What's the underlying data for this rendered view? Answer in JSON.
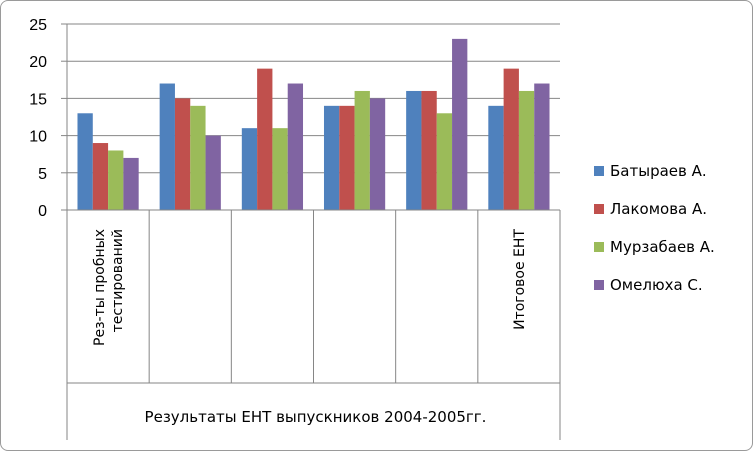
{
  "chart_data": {
    "type": "bar",
    "categories": [
      "Рез-ты пробных тестирований",
      "",
      "",
      "",
      "",
      "Итоговое ЕНТ"
    ],
    "category_label_lines": [
      [
        "Рез-ты пробных",
        "тестирований"
      ],
      [],
      [],
      [],
      [],
      [
        "Итоговое ЕНТ"
      ]
    ],
    "group_label": "Результаты ЕНТ выпускников 2004-2005гг.",
    "series": [
      {
        "name": "Батыраев А.",
        "color": "#4F81BD",
        "values": [
          13,
          17,
          11,
          14,
          16,
          14
        ]
      },
      {
        "name": "Лакомова А.",
        "color": "#C0504D",
        "values": [
          9,
          15,
          19,
          14,
          16,
          19
        ]
      },
      {
        "name": "Мурзабаев А.",
        "color": "#9BBB59",
        "values": [
          8,
          14,
          11,
          16,
          13,
          16
        ]
      },
      {
        "name": "Омелюха С.",
        "color": "#8064A2",
        "values": [
          7,
          10,
          17,
          15,
          23,
          17
        ]
      }
    ],
    "ylim": [
      0,
      25
    ],
    "yticks": [
      0,
      5,
      10,
      15,
      20,
      25
    ],
    "grid": true,
    "legend": "right",
    "title": "",
    "xlabel": "",
    "ylabel": ""
  }
}
